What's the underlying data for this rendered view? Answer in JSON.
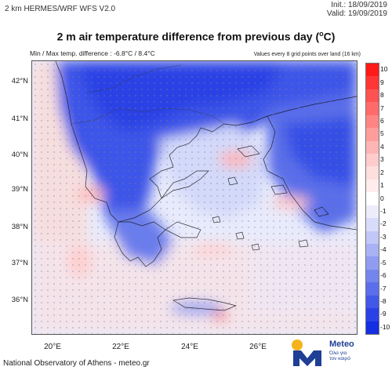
{
  "header": {
    "model": "2 km HERMES/WRF WFS V2.0",
    "init": "Init.: 18/09/2019",
    "valid": "Valid: 19/09/2019"
  },
  "title": {
    "text": "2 m air temperature difference from previous day (",
    "unit_sup": "o",
    "unit_tail": "C)"
  },
  "subtitle": {
    "minmax": "Min / Max temp. difference : -6.8°C / 8.4°C",
    "note": "Values every 8 grid points over land (16 km)"
  },
  "axes": {
    "lat_labels": [
      "42°N",
      "41°N",
      "40°N",
      "39°N",
      "38°N",
      "37°N",
      "36°N"
    ],
    "lon_labels": [
      "20°E",
      "22°E",
      "24°E",
      "26°E"
    ]
  },
  "colorbar": {
    "labels": [
      "10",
      "9",
      "8",
      "7",
      "6",
      "5",
      "4",
      "3",
      "2",
      "1",
      "0",
      "-1",
      "-2",
      "-3",
      "-4",
      "-5",
      "-6",
      "-7",
      "-8",
      "-9",
      "-10"
    ],
    "colors": [
      "#ff1a1a",
      "#ff3636",
      "#ff5252",
      "#ff6b6b",
      "#ff8585",
      "#ff9d9d",
      "#ffb5b5",
      "#ffcccc",
      "#ffdede",
      "#ffecec",
      "#ffffff",
      "#ececfb",
      "#d8dcfa",
      "#c1c8f7",
      "#a8b2f4",
      "#8f9cf1",
      "#7585ee",
      "#5b6eeb",
      "#4258e8",
      "#2a42e5",
      "#142ee2"
    ]
  },
  "footer": {
    "credit": "National Observatory of Athens - meteo.gr"
  },
  "logo": {
    "name": "Meteo",
    "tagline_1": "Όλα για",
    "tagline_2": "τον καιρό",
    "icon": "meteo-m-logo-icon",
    "sun_color": "#f6b21b",
    "brand_color": "#1f3f94"
  }
}
